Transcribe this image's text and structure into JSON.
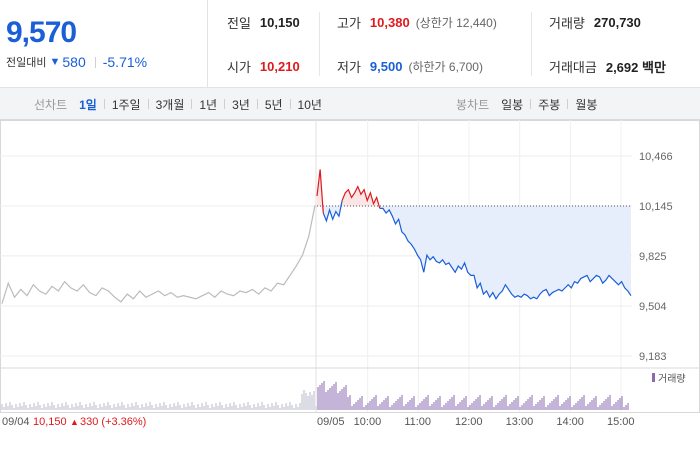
{
  "summary": {
    "price": "9,570",
    "change_label": "전일대비",
    "change_icon": "down-triangle-icon",
    "change_arrow": "▼",
    "change_value": "580",
    "change_pct": "-5.71%",
    "colors": {
      "up": "#e0191c",
      "down": "#1a5fd8"
    },
    "prev_close": {
      "label": "전일",
      "value": "10,150"
    },
    "open": {
      "label": "시가",
      "value": "10,210"
    },
    "high": {
      "label": "고가",
      "value": "10,380",
      "limit_text": "(상한가 12,440)"
    },
    "low": {
      "label": "저가",
      "value": "9,500",
      "limit_text": "(하한가 6,700)"
    },
    "volume": {
      "label": "거래량",
      "value": "270,730"
    },
    "trade_value": {
      "label": "거래대금",
      "value": "2,692 백만"
    }
  },
  "tabs": {
    "line_label": "선차트",
    "line_periods": [
      "1일",
      "1주일",
      "3개월",
      "1년",
      "3년",
      "5년",
      "10년"
    ],
    "active_period": "1일",
    "candle_label": "봉차트",
    "candle_periods": [
      "일봉",
      "주봉",
      "월봉"
    ]
  },
  "chart_data": {
    "type": "line",
    "y_ticks": [
      "10,466",
      "10,145",
      "9,825",
      "9,504",
      "9,183"
    ],
    "ylim": [
      9183,
      10466
    ],
    "reference_line": 10145,
    "x_ticks": [
      "09/05",
      "10:00",
      "11:00",
      "12:00",
      "13:00",
      "14:00",
      "15:00"
    ],
    "prev_day_label": "09/04",
    "prev_day_close_text": "10,150",
    "prev_day_change_arrow": "▲",
    "prev_day_change_text": "330 (+3.36%)",
    "volume_legend": "거래량",
    "series": [
      {
        "day": "prev",
        "x": [
          0,
          2,
          4,
          6,
          8,
          10,
          12,
          14,
          16,
          18,
          20,
          22,
          24,
          26,
          28,
          30,
          32,
          34,
          36,
          38,
          40,
          42,
          44,
          46,
          48,
          50,
          52,
          54,
          56,
          58,
          60,
          62,
          64,
          66,
          68,
          70,
          72,
          74,
          76,
          78,
          80,
          82,
          84,
          86,
          88,
          90,
          92,
          94,
          96,
          98,
          100
        ],
        "values": [
          9519,
          9650,
          9560,
          9610,
          9570,
          9640,
          9600,
          9580,
          9630,
          9600,
          9660,
          9620,
          9600,
          9640,
          9590,
          9570,
          9620,
          9600,
          9560,
          9530,
          9580,
          9550,
          9600,
          9560,
          9580,
          9600,
          9570,
          9590,
          9560,
          9570,
          9560,
          9550,
          9570,
          9590,
          9560,
          9600,
          9580,
          9570,
          9600,
          9590,
          9610,
          9580,
          9620,
          9600,
          9650,
          9640,
          9700,
          9760,
          9830,
          9950,
          10150
        ]
      },
      {
        "day": "today",
        "x": [
          0,
          1,
          2,
          3,
          4,
          5,
          6,
          7,
          8,
          9,
          10,
          11,
          12,
          13,
          14,
          15,
          16,
          17,
          18,
          19,
          20,
          21,
          22,
          23,
          24,
          25,
          26,
          27,
          28,
          29,
          30,
          31,
          32,
          33,
          34,
          35,
          36,
          37,
          38,
          39,
          40,
          41,
          42,
          43,
          44,
          45,
          46,
          47,
          48,
          49,
          50,
          51,
          52,
          53,
          54,
          55,
          56,
          57,
          58,
          59,
          60,
          61,
          62,
          63,
          64,
          65,
          66,
          67,
          68,
          69,
          70,
          71,
          72,
          73,
          74,
          75,
          76,
          77,
          78,
          79,
          80,
          81,
          82,
          83,
          84,
          85,
          86,
          87,
          88,
          89,
          90,
          91,
          92,
          93,
          94,
          95,
          96,
          97,
          98,
          99,
          100
        ],
        "values": [
          10210,
          10380,
          10100,
          10050,
          10120,
          10060,
          10110,
          10080,
          10180,
          10230,
          10250,
          10200,
          10230,
          10270,
          10220,
          10250,
          10180,
          10230,
          10160,
          10200,
          10130,
          10130,
          10100,
          10120,
          10080,
          10030,
          10060,
          9980,
          9960,
          9920,
          9900,
          9870,
          9830,
          9800,
          9720,
          9830,
          9800,
          9820,
          9790,
          9780,
          9800,
          9770,
          9780,
          9750,
          9720,
          9760,
          9740,
          9780,
          9720,
          9700,
          9700,
          9620,
          9650,
          9580,
          9600,
          9560,
          9590,
          9550,
          9580,
          9600,
          9640,
          9610,
          9580,
          9560,
          9570,
          9560,
          9580,
          9570,
          9550,
          9560,
          9550,
          9580,
          9600,
          9610,
          9570,
          9590,
          9600,
          9610,
          9600,
          9620,
          9640,
          9620,
          9660,
          9650,
          9680,
          9690,
          9700,
          9660,
          9680,
          9700,
          9690,
          9650,
          9670,
          9700,
          9680,
          9660,
          9640,
          9660,
          9620,
          9600,
          9570
        ]
      }
    ]
  }
}
